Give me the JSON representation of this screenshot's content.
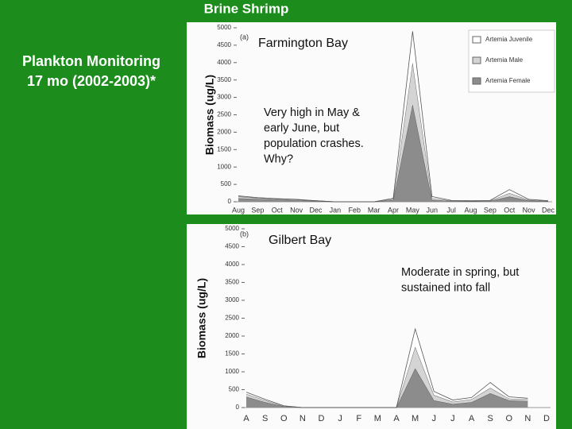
{
  "slide_title": "Brine Shrimp",
  "side_text": [
    "Plankton Monitoring",
    "17 mo (2002-2003)*"
  ],
  "chart_data": [
    {
      "type": "stacked_area",
      "panel_label": "(a)",
      "title": "Farmington Bay",
      "annotation": [
        "Very high in May &",
        "early June, but",
        "population crashes.",
        "Why?"
      ],
      "ylabel": "Biomass (ug/L)",
      "categories": [
        "Aug",
        "Sep",
        "Oct",
        "Nov",
        "Dec",
        "Jan",
        "Feb",
        "Mar",
        "Apr",
        "May",
        "Jun",
        "Jul",
        "Aug",
        "Sep",
        "Oct",
        "Nov",
        "Dec"
      ],
      "ylim": [
        0,
        5000
      ],
      "yticks": [
        0,
        500,
        1000,
        1500,
        2000,
        2500,
        3000,
        3500,
        4000,
        4500,
        5000
      ],
      "legend": "top-right",
      "series": [
        {
          "name": "Artemia Female",
          "color": "#8c8c8c",
          "values": [
            100,
            80,
            60,
            40,
            20,
            0,
            0,
            0,
            50,
            2800,
            50,
            20,
            10,
            20,
            150,
            30,
            10
          ]
        },
        {
          "name": "Artemia Male",
          "color": "#d4d4d4",
          "values": [
            50,
            30,
            20,
            20,
            10,
            0,
            0,
            0,
            30,
            1200,
            50,
            10,
            10,
            10,
            100,
            20,
            10
          ]
        },
        {
          "name": "Artemia Juvenile",
          "color": "#ffffff",
          "values": [
            20,
            10,
            10,
            10,
            0,
            0,
            0,
            0,
            20,
            900,
            50,
            10,
            10,
            10,
            100,
            20,
            10
          ]
        }
      ]
    },
    {
      "type": "stacked_area",
      "panel_label": "(b)",
      "title": "Gilbert Bay",
      "annotation": [
        "Moderate in spring, but",
        "sustained into fall"
      ],
      "ylabel": "Biomass (ug/L)",
      "categories": [
        "A",
        "S",
        "O",
        "N",
        "D",
        "J",
        "F",
        "M",
        "A",
        "M",
        "J",
        "J",
        "A",
        "S",
        "O",
        "N",
        "D"
      ],
      "ylim": [
        0,
        5000
      ],
      "yticks": [
        0,
        500,
        1000,
        1500,
        2000,
        2500,
        3000,
        3500,
        4000,
        4500,
        5000
      ],
      "series": [
        {
          "name": "Artemia Female",
          "color": "#8c8c8c",
          "values": [
            300,
            150,
            30,
            0,
            0,
            0,
            0,
            0,
            0,
            1100,
            200,
            100,
            150,
            400,
            200,
            180,
            null
          ]
        },
        {
          "name": "Artemia Male",
          "color": "#d4d4d4",
          "values": [
            80,
            50,
            10,
            0,
            0,
            0,
            0,
            0,
            0,
            600,
            150,
            60,
            80,
            150,
            50,
            50,
            null
          ]
        },
        {
          "name": "Artemia Juvenile",
          "color": "#ffffff",
          "values": [
            50,
            30,
            10,
            0,
            0,
            0,
            0,
            0,
            0,
            500,
            100,
            50,
            50,
            150,
            50,
            30,
            null
          ]
        }
      ]
    }
  ]
}
